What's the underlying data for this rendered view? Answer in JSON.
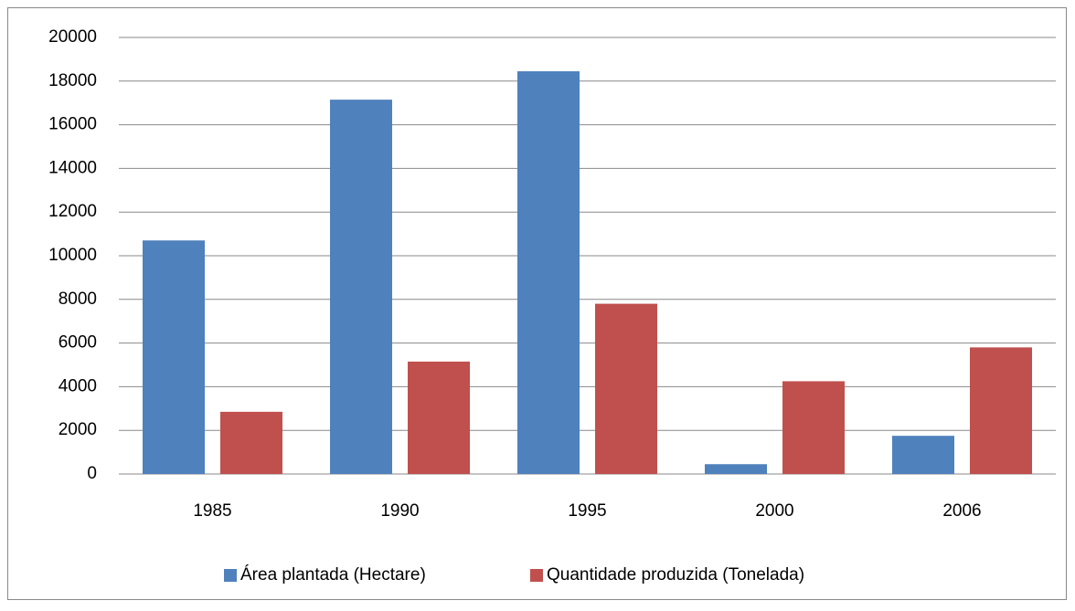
{
  "chart_data": {
    "type": "bar",
    "categories": [
      "1985",
      "1990",
      "1995",
      "2000",
      "2006"
    ],
    "series": [
      {
        "name": "Área plantada (Hectare)",
        "color": "#4f81bd",
        "values": [
          10700,
          17150,
          18450,
          450,
          1750
        ]
      },
      {
        "name": "Quantidade produzida (Tonelada)",
        "color": "#c0504d",
        "values": [
          2850,
          5150,
          7800,
          4250,
          5800
        ]
      }
    ],
    "ylim": [
      0,
      20000
    ],
    "yticks": [
      0,
      2000,
      4000,
      6000,
      8000,
      10000,
      12000,
      14000,
      16000,
      18000,
      20000
    ],
    "grid": true,
    "legend": "bottom"
  }
}
